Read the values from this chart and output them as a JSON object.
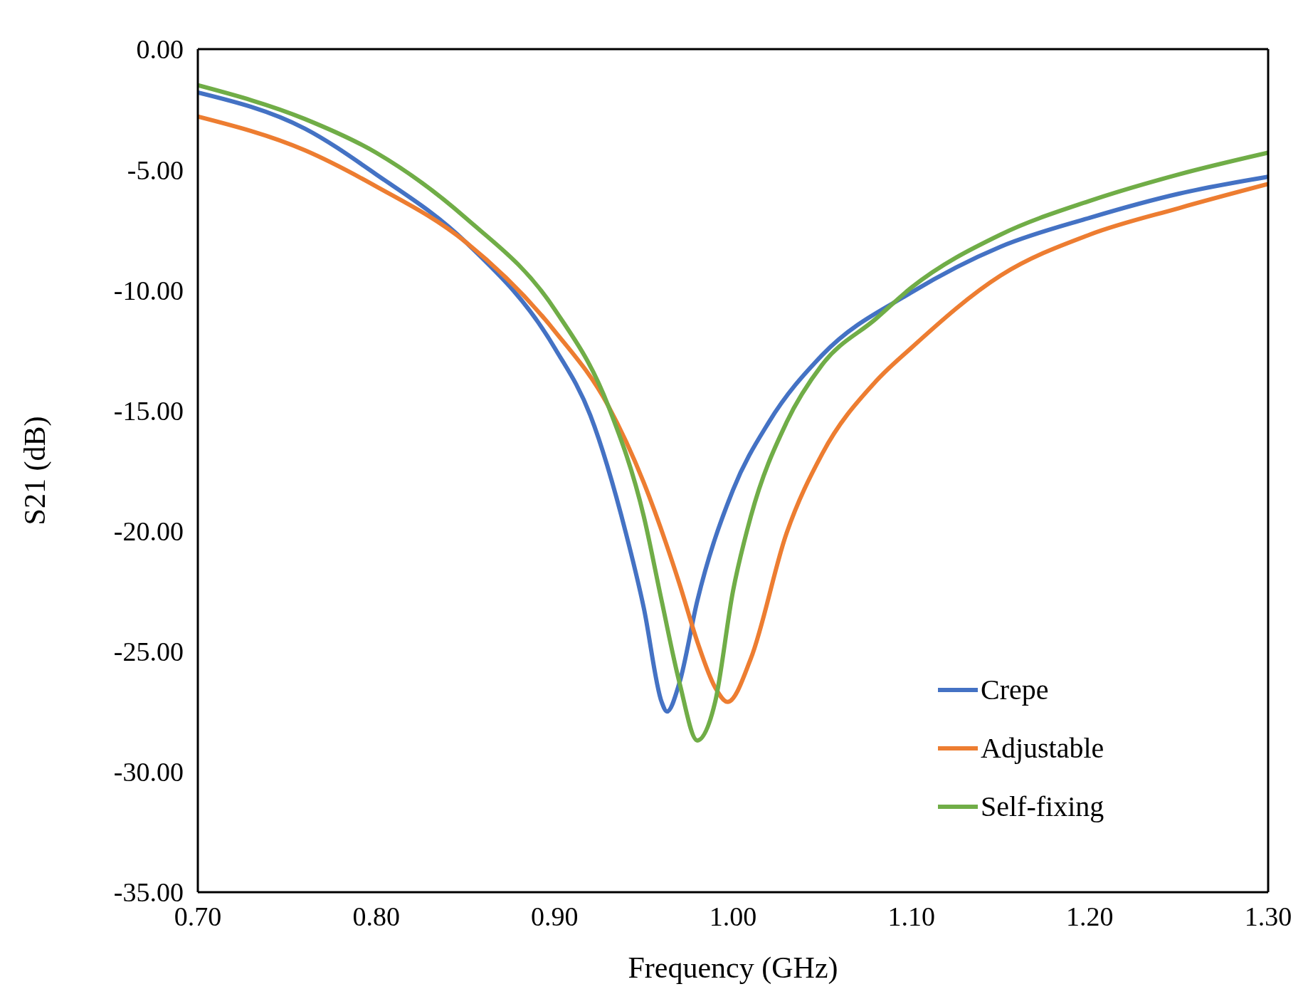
{
  "chart_data": {
    "type": "line",
    "xlabel": "Frequency (GHz)",
    "ylabel": "S21 (dB)",
    "xlim": [
      0.7,
      1.3
    ],
    "xticks": [
      {
        "value": 0.7,
        "label": "0.70"
      },
      {
        "value": 0.8,
        "label": "0.80"
      },
      {
        "value": 0.9,
        "label": "0.90"
      },
      {
        "value": 1.0,
        "label": "1.00"
      },
      {
        "value": 1.1,
        "label": "1.10"
      },
      {
        "value": 1.2,
        "label": "1.20"
      },
      {
        "value": 1.3,
        "label": "1.30"
      }
    ],
    "ylim": [
      -35,
      0
    ],
    "yticks": [
      {
        "value": -35,
        "label": "-35.00"
      },
      {
        "value": -30,
        "label": "-30.00"
      },
      {
        "value": -25,
        "label": "-25.00"
      },
      {
        "value": -20,
        "label": "-20.00"
      },
      {
        "value": -15,
        "label": "-15.00"
      },
      {
        "value": -10,
        "label": "-10.00"
      },
      {
        "value": -5,
        "label": "-5.00"
      },
      {
        "value": 0,
        "label": "0.00"
      }
    ],
    "legend": "bottom right",
    "marker": "none",
    "line_style": "solid",
    "series": [
      {
        "name": "Crepe",
        "color": "#4472c4",
        "x": [
          0.7,
          0.76,
          0.8,
          0.85,
          0.9,
          0.92,
          0.94,
          0.95,
          0.96,
          0.963,
          0.97,
          0.98,
          1.0,
          1.02,
          1.05,
          1.1,
          1.15,
          1.2,
          1.25,
          1.3
        ],
        "values": [
          -1.8,
          -3.3,
          -5.2,
          -8.0,
          -12.4,
          -15.2,
          -20.1,
          -23.2,
          -27.1,
          -27.5,
          -26.3,
          -22.9,
          -18.3,
          -15.5,
          -12.7,
          -10.1,
          -8.2,
          -7.0,
          -6.0,
          -5.3
        ]
      },
      {
        "name": "Adjustable",
        "color": "#ed7d31",
        "x": [
          0.7,
          0.76,
          0.8,
          0.85,
          0.9,
          0.93,
          0.95,
          0.97,
          0.98,
          0.99,
          0.997,
          1.01,
          1.03,
          1.05,
          1.08,
          1.1,
          1.15,
          1.2,
          1.25,
          1.3
        ],
        "values": [
          -2.8,
          -4.2,
          -5.7,
          -8.0,
          -11.7,
          -14.8,
          -18.0,
          -22.2,
          -24.6,
          -26.5,
          -27.1,
          -25.3,
          -20.1,
          -16.8,
          -13.8,
          -12.4,
          -9.4,
          -7.7,
          -6.6,
          -5.6
        ]
      },
      {
        "name": "Self-fixing",
        "color": "#70ad47",
        "x": [
          0.7,
          0.76,
          0.8,
          0.85,
          0.9,
          0.93,
          0.95,
          0.96,
          0.97,
          0.98,
          0.99,
          1.0,
          1.01,
          1.03,
          1.05,
          1.08,
          1.1,
          1.15,
          1.2,
          1.25,
          1.3
        ],
        "values": [
          -1.5,
          -2.9,
          -4.3,
          -7.0,
          -10.8,
          -14.8,
          -19.4,
          -22.9,
          -26.3,
          -28.7,
          -27.1,
          -22.5,
          -19.4,
          -15.5,
          -13.1,
          -11.2,
          -9.9,
          -7.7,
          -6.3,
          -5.2,
          -4.3
        ]
      }
    ]
  }
}
